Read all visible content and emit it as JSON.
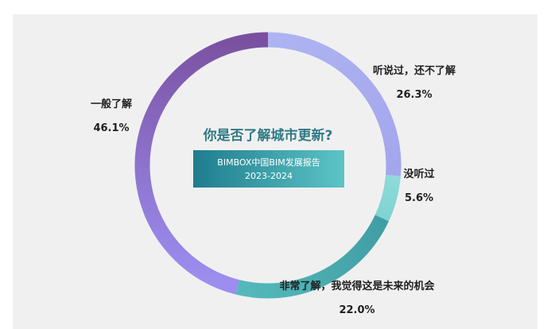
{
  "chart_data": {
    "type": "pie",
    "variant": "donut",
    "title": "你是否了解城市更新?",
    "subtitle_lines": [
      "BIMBOX中国BIM发展报告",
      "2023-2024"
    ],
    "slices": [
      {
        "label": "听说过，还不了解",
        "value": 26.3,
        "display": "26.3%",
        "color_start": "#aeb4f2",
        "color_end": "#a3a6ec"
      },
      {
        "label": "没听过",
        "value": 5.6,
        "display": "5.6%",
        "color_start": "#8fdbd9",
        "color_end": "#7fd3d0"
      },
      {
        "label": "非常了解，我觉得这是未来的机会",
        "value": 22.0,
        "display": "22.0%",
        "color_start": "#3f9ea4",
        "color_end": "#55b9bb"
      },
      {
        "label": "一般了解",
        "value": 46.1,
        "display": "46.1%",
        "color_start": "#9c8ef0",
        "color_end": "#7a509f"
      }
    ],
    "start_angle_deg": 0,
    "direction": "clockwise"
  },
  "colors": {
    "card_background": "#f0f0f1",
    "banner_start": "#1f7d8e",
    "banner_end": "#5cc4c6",
    "question_text": "#2f7a84"
  }
}
